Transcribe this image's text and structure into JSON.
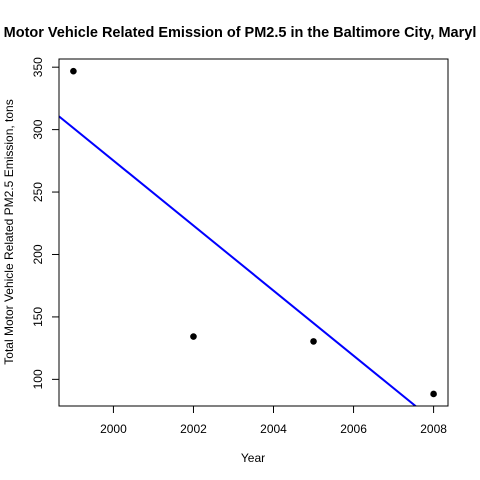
{
  "chart_data": {
    "type": "scatter",
    "title": "Motor Vehicle Related Emission of PM2.5 in the Baltimore City, Maryl",
    "xlabel": "Year",
    "ylabel": "Total Motor Vehicle Related PM2.5 Emission, tons",
    "xlim": [
      1998.64,
      2008.36
    ],
    "ylim": [
      78.66,
      356.55
    ],
    "x_ticks": [
      2000,
      2002,
      2004,
      2006,
      2008
    ],
    "y_ticks": [
      100,
      150,
      200,
      250,
      300,
      350
    ],
    "grid": false,
    "points": [
      {
        "x": 1999,
        "y": 346.8
      },
      {
        "x": 2002,
        "y": 134.3
      },
      {
        "x": 2005,
        "y": 130.4
      },
      {
        "x": 2008,
        "y": 88.3
      }
    ],
    "trend_line": {
      "intercept_at_1999": 301.25,
      "slope": -26.04,
      "color": "#0000ff"
    },
    "point_color": "#000000"
  }
}
